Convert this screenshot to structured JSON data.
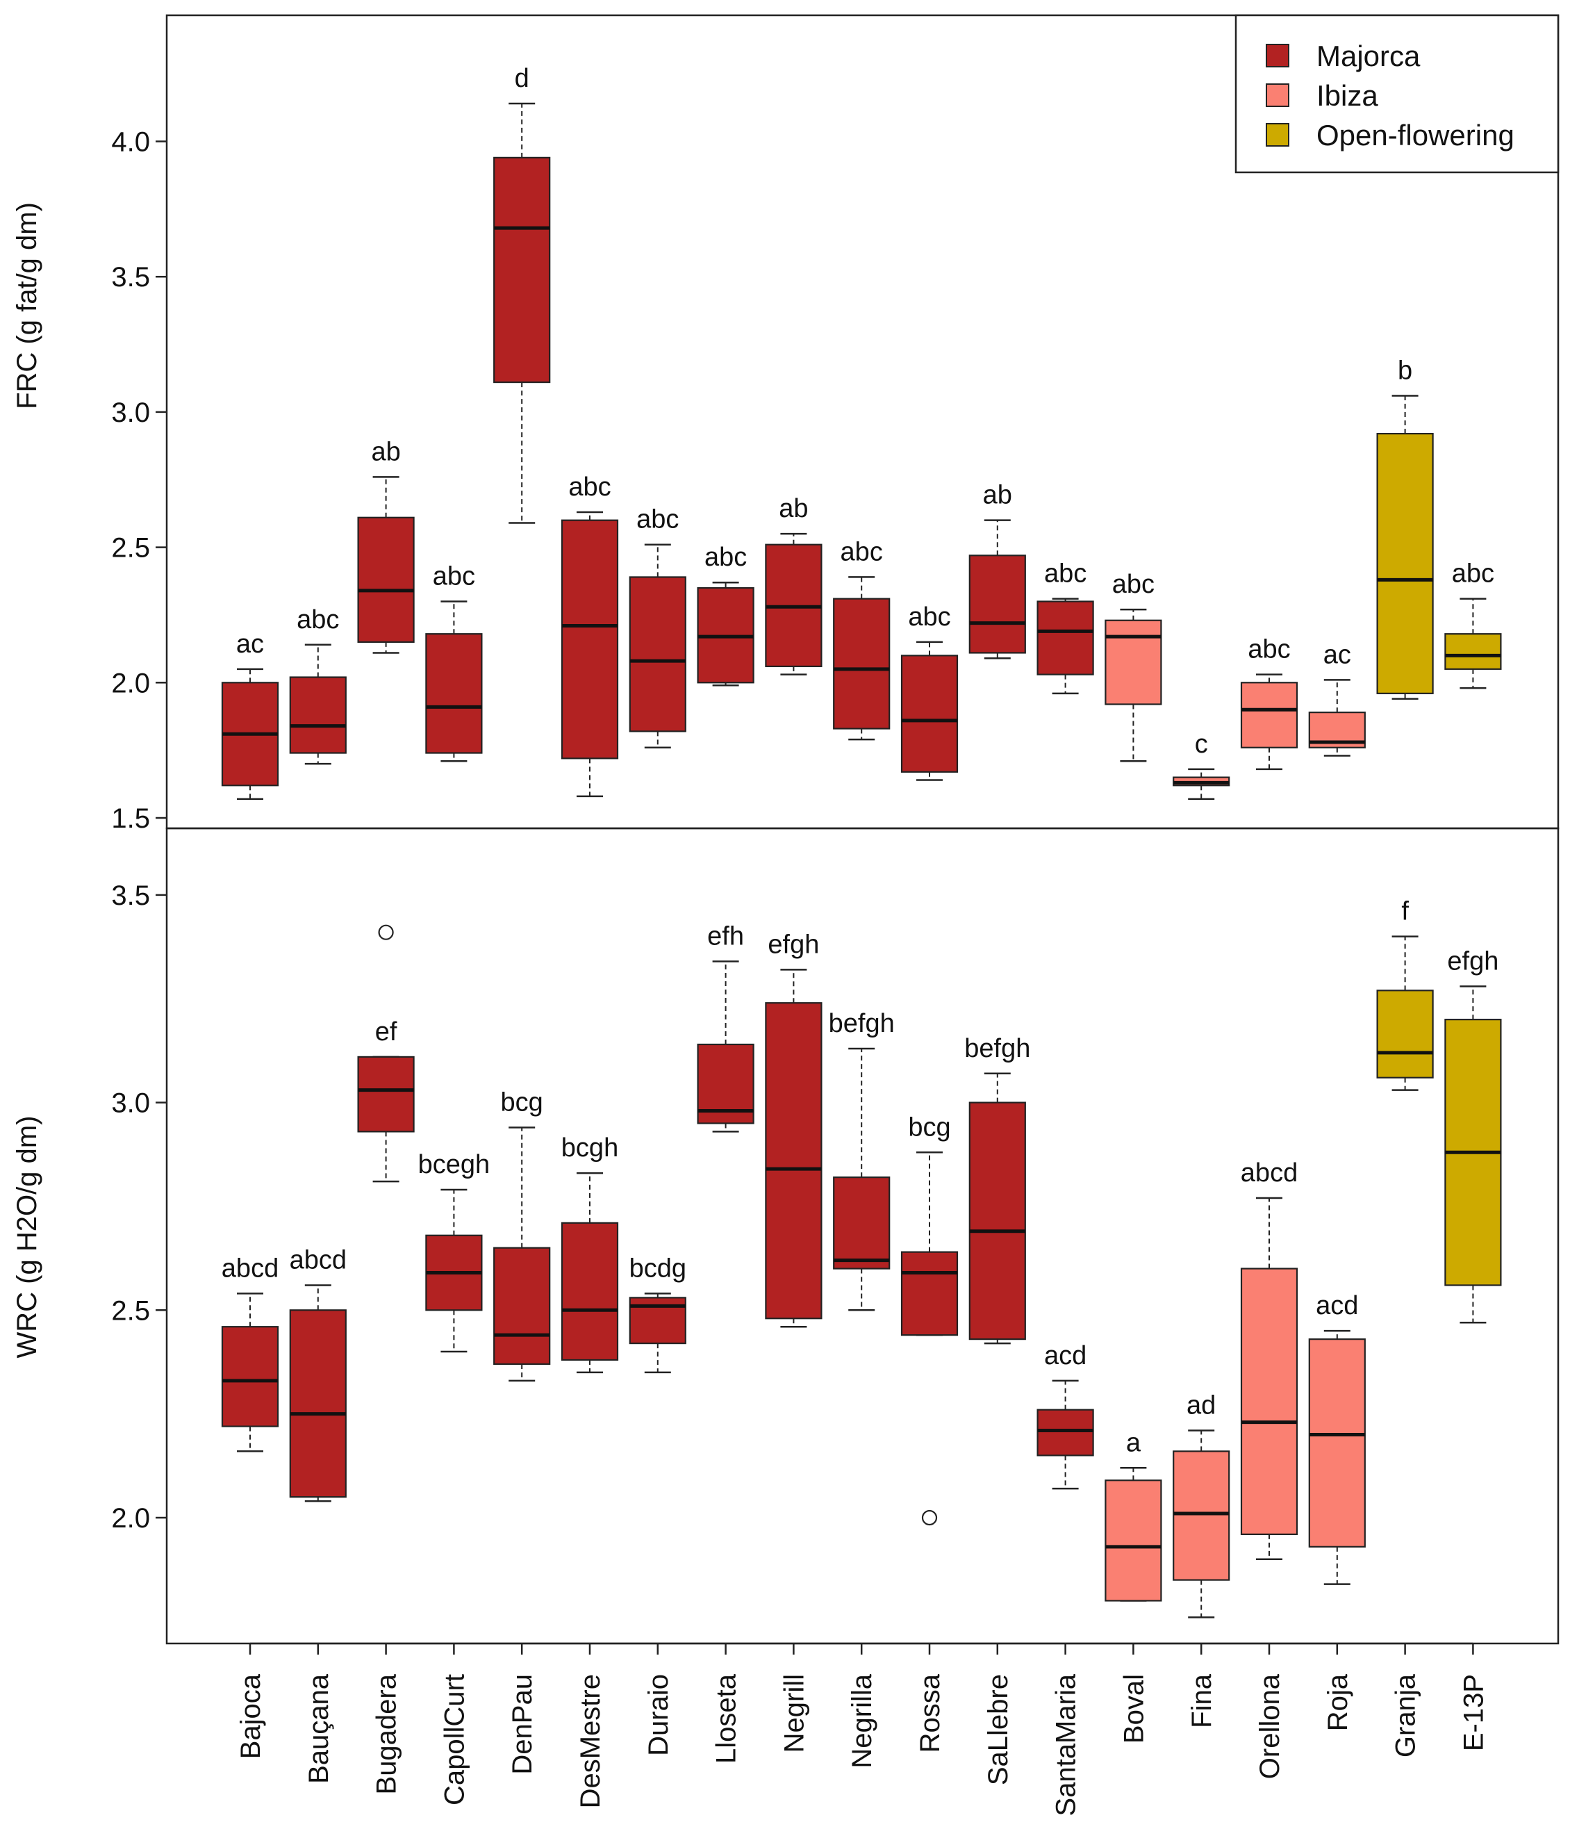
{
  "colors": {
    "Majorca": "#b22222",
    "Ibiza": "#fa8072",
    "Open-flowering": "#cdaa00"
  },
  "legend": [
    {
      "label": "Majorca",
      "group": "Majorca"
    },
    {
      "label": "Ibiza",
      "group": "Ibiza"
    },
    {
      "label": "Open-flowering",
      "group": "Open-flowering"
    }
  ],
  "chart_data": [
    {
      "type": "boxplot",
      "panel": "top",
      "ylabel": "FRC (g fat/g dm)",
      "ylim": [
        1.5,
        4.5
      ],
      "yticks": [
        1.5,
        2.0,
        2.5,
        3.0,
        3.5,
        4.0
      ],
      "ytick_labels": [
        "1.5",
        "2.0",
        "2.5",
        "3.0",
        "3.5",
        "4.0"
      ],
      "categories": [
        "Bajoca",
        "Bauçana",
        "Bugadera",
        "CapollCurt",
        "DenPau",
        "DesMestre",
        "Duraio",
        "Lloseta",
        "Negrill",
        "Negrilla",
        "Rossa",
        "SaLlebre",
        "SantaMaria",
        "Boval",
        "Fina",
        "Orellona",
        "Roja",
        "Granja",
        "E-13P"
      ],
      "groups": [
        "Majorca",
        "Majorca",
        "Majorca",
        "Majorca",
        "Majorca",
        "Majorca",
        "Majorca",
        "Majorca",
        "Majorca",
        "Majorca",
        "Majorca",
        "Majorca",
        "Majorca",
        "Ibiza",
        "Ibiza",
        "Ibiza",
        "Ibiza",
        "Open-flowering",
        "Open-flowering"
      ],
      "boxes": [
        {
          "min": 1.57,
          "q1": 1.62,
          "median": 1.81,
          "q3": 2.0,
          "max": 2.05,
          "letters": "ac"
        },
        {
          "min": 1.7,
          "q1": 1.74,
          "median": 1.84,
          "q3": 2.02,
          "max": 2.14,
          "letters": "abc"
        },
        {
          "min": 2.11,
          "q1": 2.15,
          "median": 2.34,
          "q3": 2.61,
          "max": 2.76,
          "letters": "ab"
        },
        {
          "min": 1.71,
          "q1": 1.74,
          "median": 1.91,
          "q3": 2.18,
          "max": 2.3,
          "letters": "abc"
        },
        {
          "min": 2.59,
          "q1": 3.11,
          "median": 3.68,
          "q3": 3.94,
          "max": 4.14,
          "letters": "d"
        },
        {
          "min": 1.58,
          "q1": 1.72,
          "median": 2.21,
          "q3": 2.6,
          "max": 2.63,
          "letters": "abc"
        },
        {
          "min": 1.76,
          "q1": 1.82,
          "median": 2.08,
          "q3": 2.39,
          "max": 2.51,
          "letters": "abc"
        },
        {
          "min": 1.99,
          "q1": 2.0,
          "median": 2.17,
          "q3": 2.35,
          "max": 2.37,
          "letters": "abc"
        },
        {
          "min": 2.03,
          "q1": 2.06,
          "median": 2.28,
          "q3": 2.51,
          "max": 2.55,
          "letters": "ab"
        },
        {
          "min": 1.79,
          "q1": 1.83,
          "median": 2.05,
          "q3": 2.31,
          "max": 2.39,
          "letters": "abc"
        },
        {
          "min": 1.64,
          "q1": 1.67,
          "median": 1.86,
          "q3": 2.1,
          "max": 2.15,
          "letters": "abc"
        },
        {
          "min": 2.09,
          "q1": 2.11,
          "median": 2.22,
          "q3": 2.47,
          "max": 2.6,
          "letters": "ab"
        },
        {
          "min": 1.96,
          "q1": 2.03,
          "median": 2.19,
          "q3": 2.3,
          "max": 2.31,
          "letters": "abc"
        },
        {
          "min": 1.71,
          "q1": 1.92,
          "median": 2.17,
          "q3": 2.23,
          "max": 2.27,
          "letters": "abc"
        },
        {
          "min": 1.57,
          "q1": 1.62,
          "median": 1.63,
          "q3": 1.65,
          "max": 1.68,
          "letters": "c"
        },
        {
          "min": 1.68,
          "q1": 1.76,
          "median": 1.9,
          "q3": 2.0,
          "max": 2.03,
          "letters": "abc"
        },
        {
          "min": 1.73,
          "q1": 1.76,
          "median": 1.78,
          "q3": 1.89,
          "max": 2.01,
          "letters": "ac"
        },
        {
          "min": 1.94,
          "q1": 1.96,
          "median": 2.38,
          "q3": 2.92,
          "max": 3.06,
          "letters": "b"
        },
        {
          "min": 1.98,
          "q1": 2.05,
          "median": 2.1,
          "q3": 2.18,
          "max": 2.31,
          "letters": "abc"
        }
      ]
    },
    {
      "type": "boxplot",
      "panel": "bottom",
      "ylabel": "WRC (g H2O/g dm)",
      "ylim": [
        1.7,
        3.65
      ],
      "yticks": [
        2.0,
        2.5,
        3.0,
        3.5
      ],
      "ytick_labels": [
        "2.0",
        "2.5",
        "3.0",
        "3.5"
      ],
      "categories": [
        "Bajoca",
        "Bauçana",
        "Bugadera",
        "CapollCurt",
        "DenPau",
        "DesMestre",
        "Duraio",
        "Lloseta",
        "Negrill",
        "Negrilla",
        "Rossa",
        "SaLlebre",
        "SantaMaria",
        "Boval",
        "Fina",
        "Orellona",
        "Roja",
        "Granja",
        "E-13P"
      ],
      "groups": [
        "Majorca",
        "Majorca",
        "Majorca",
        "Majorca",
        "Majorca",
        "Majorca",
        "Majorca",
        "Majorca",
        "Majorca",
        "Majorca",
        "Majorca",
        "Majorca",
        "Majorca",
        "Ibiza",
        "Ibiza",
        "Ibiza",
        "Ibiza",
        "Open-flowering",
        "Open-flowering"
      ],
      "boxes": [
        {
          "min": 2.16,
          "q1": 2.22,
          "median": 2.33,
          "q3": 2.46,
          "max": 2.54,
          "outliers": [],
          "letters": "abcd"
        },
        {
          "min": 2.04,
          "q1": 2.05,
          "median": 2.25,
          "q3": 2.5,
          "max": 2.56,
          "outliers": [],
          "letters": "abcd"
        },
        {
          "min": 2.81,
          "q1": 2.93,
          "median": 3.03,
          "q3": 3.11,
          "max": 3.11,
          "outliers": [
            3.41
          ],
          "letters": "ef"
        },
        {
          "min": 2.4,
          "q1": 2.5,
          "median": 2.59,
          "q3": 2.68,
          "max": 2.79,
          "outliers": [],
          "letters": "bcegh"
        },
        {
          "min": 2.33,
          "q1": 2.37,
          "median": 2.44,
          "q3": 2.65,
          "max": 2.94,
          "outliers": [],
          "letters": "bcg"
        },
        {
          "min": 2.35,
          "q1": 2.38,
          "median": 2.5,
          "q3": 2.71,
          "max": 2.83,
          "outliers": [],
          "letters": "bcgh"
        },
        {
          "min": 2.35,
          "q1": 2.42,
          "median": 2.51,
          "q3": 2.53,
          "max": 2.54,
          "outliers": [],
          "letters": "bcdg"
        },
        {
          "min": 2.93,
          "q1": 2.95,
          "median": 2.98,
          "q3": 3.14,
          "max": 3.34,
          "outliers": [],
          "letters": "efh"
        },
        {
          "min": 2.46,
          "q1": 2.48,
          "median": 2.84,
          "q3": 3.24,
          "max": 3.32,
          "outliers": [],
          "letters": "efgh"
        },
        {
          "min": 2.5,
          "q1": 2.6,
          "median": 2.62,
          "q3": 2.82,
          "max": 3.13,
          "outliers": [],
          "letters": "befgh"
        },
        {
          "min": 2.44,
          "q1": 2.44,
          "median": 2.59,
          "q3": 2.64,
          "max": 2.88,
          "outliers": [
            2.0
          ],
          "letters": "bcg"
        },
        {
          "min": 2.42,
          "q1": 2.43,
          "median": 2.69,
          "q3": 3.0,
          "max": 3.07,
          "outliers": [],
          "letters": "befgh"
        },
        {
          "min": 2.07,
          "q1": 2.15,
          "median": 2.21,
          "q3": 2.26,
          "max": 2.33,
          "outliers": [],
          "letters": "acd"
        },
        {
          "min": 1.8,
          "q1": 1.8,
          "median": 1.93,
          "q3": 2.09,
          "max": 2.12,
          "outliers": [],
          "letters": "a"
        },
        {
          "min": 1.76,
          "q1": 1.85,
          "median": 2.01,
          "q3": 2.16,
          "max": 2.21,
          "outliers": [],
          "letters": "ad"
        },
        {
          "min": 1.9,
          "q1": 1.96,
          "median": 2.23,
          "q3": 2.6,
          "max": 2.77,
          "outliers": [],
          "letters": "abcd"
        },
        {
          "min": 1.84,
          "q1": 1.93,
          "median": 2.2,
          "q3": 2.43,
          "max": 2.45,
          "outliers": [],
          "letters": "acd"
        },
        {
          "min": 3.03,
          "q1": 3.06,
          "median": 3.12,
          "q3": 3.27,
          "max": 3.4,
          "outliers": [],
          "letters": "f"
        },
        {
          "min": 2.47,
          "q1": 2.56,
          "median": 2.88,
          "q3": 3.2,
          "max": 3.28,
          "outliers": [],
          "letters": "efgh"
        }
      ]
    }
  ]
}
